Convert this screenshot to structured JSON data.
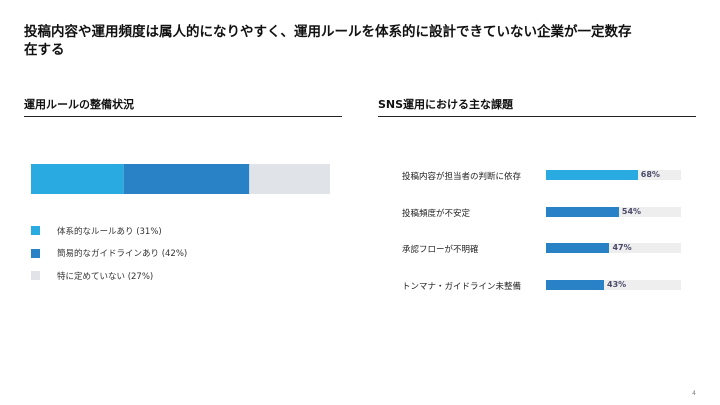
{
  "slide": {
    "title_line1": "投稿内容や運用頻度は属人的になりやすく、運用ルールを体系的に設計できていない企業が一定数存",
    "title_line2": "在する",
    "page_number": "4"
  },
  "left_section": {
    "title": "運用ルールの整備状況"
  },
  "right_section": {
    "title": "SNS運用における主な課題"
  },
  "chart_data": [
    {
      "type": "bar",
      "stacked": true,
      "orientation": "horizontal",
      "title": "運用ルールの整備状況",
      "series": [
        {
          "name": "体系的なルールあり",
          "values": [
            31
          ],
          "color": "#29abe2"
        },
        {
          "name": "簡易的なガイドラインあり",
          "values": [
            42
          ],
          "color": "#2a82c6"
        },
        {
          "name": "特に定めていない",
          "values": [
            27
          ],
          "color": "#e0e4e8"
        }
      ],
      "legend_labels": [
        "体系的なルールあり (31%)",
        "簡易的なガイドラインあり (42%)",
        "特に定めていない (27%)"
      ],
      "legend_position": "bottom-left"
    },
    {
      "type": "bar",
      "orientation": "horizontal",
      "title": "SNS運用における主な課題",
      "categories": [
        "投稿内容が担当者の判断に依存",
        "投稿頻度が不安定",
        "承認フローが不明確",
        "トンマナ・ガイドライン未整備"
      ],
      "values": [
        68,
        54,
        47,
        43
      ],
      "value_labels": [
        "68%",
        "54%",
        "47%",
        "43%"
      ],
      "xlim": [
        0,
        100
      ],
      "colors": [
        "#29abe2",
        "#2a82c6",
        "#2a82c6",
        "#2a82c6"
      ],
      "track_color": "#eeeeee"
    }
  ]
}
